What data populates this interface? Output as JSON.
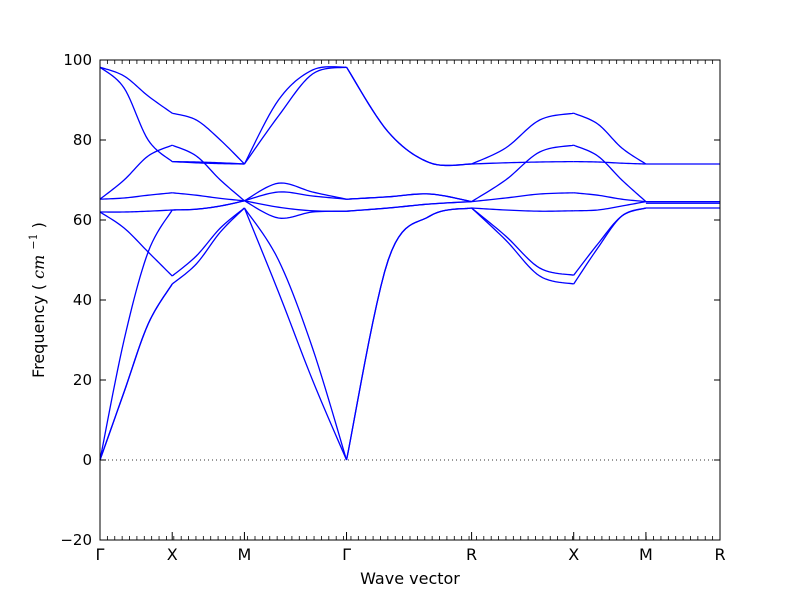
{
  "chart_data": {
    "type": "line",
    "title": "",
    "xlabel": "Wave vector",
    "ylabel": "Frequency",
    "ylabel_unit": "cm",
    "ylabel_unit_exponent": "−1",
    "ylim": [
      -20,
      100
    ],
    "yticks": [
      -20,
      0,
      20,
      40,
      60,
      80,
      100
    ],
    "ytick_labels": [
      "−20",
      "0",
      "20",
      "40",
      "60",
      "80",
      "100"
    ],
    "grid": false,
    "legend": "none",
    "series_color": "#0000ff",
    "zero_line": {
      "y": 0,
      "style": "dotted"
    },
    "xlim": [
      0,
      4.293
    ],
    "high_symmetry_points": [
      {
        "label": "Γ",
        "x": 0
      },
      {
        "label": "X",
        "x": 0.5
      },
      {
        "label": "M",
        "x": 1.0
      },
      {
        "label": "Γ",
        "x": 1.707
      },
      {
        "label": "R",
        "x": 2.573
      },
      {
        "label": "X",
        "x": 3.28
      },
      {
        "label": "M",
        "x": 3.78
      },
      {
        "label": "R",
        "x": 4.293
      }
    ],
    "segments": [
      {
        "from": "Γ",
        "to": "X",
        "x_start": 0,
        "x_end": 0.5,
        "bands": [
          [
            0,
            17,
            34,
            44
          ],
          [
            0,
            17,
            34,
            44
          ],
          [
            0,
            30,
            52,
            62.5
          ],
          [
            62,
            62,
            62.2,
            62.5
          ],
          [
            62,
            58,
            52,
            46
          ],
          [
            65.2,
            65.5,
            66.2,
            66.8
          ],
          [
            65.2,
            70,
            76,
            78.7
          ],
          [
            98.2,
            93,
            80,
            74.6
          ],
          [
            98.2,
            96,
            91,
            86.7
          ]
        ]
      },
      {
        "from": "X",
        "to": "M",
        "x_start": 0.5,
        "x_end": 1.0,
        "bands": [
          [
            44,
            49,
            57,
            63
          ],
          [
            46,
            51,
            58,
            63
          ],
          [
            62.5,
            62.7,
            63.5,
            64.8
          ],
          [
            62.5,
            62.7,
            63.5,
            64.8
          ],
          [
            66.8,
            66.2,
            65.4,
            64.8
          ],
          [
            74.6,
            74.3,
            74.1,
            74
          ],
          [
            78.7,
            76,
            70,
            64.8
          ],
          [
            86.7,
            85,
            80,
            74
          ],
          [
            74.6,
            74.5,
            74.3,
            74
          ]
        ]
      },
      {
        "from": "M",
        "to": "Γ",
        "x_start": 1.0,
        "x_end": 1.707,
        "bands": [
          [
            63,
            50,
            28,
            0
          ],
          [
            63,
            42,
            20,
            0
          ],
          [
            64.8,
            60.5,
            62,
            62.2
          ],
          [
            64.8,
            63.2,
            62.3,
            62.2
          ],
          [
            64.8,
            67,
            66,
            65.2
          ],
          [
            64.8,
            69.2,
            67,
            65.2
          ],
          [
            74,
            90,
            97.5,
            98.2
          ],
          [
            74,
            86,
            96.5,
            98.2
          ]
        ]
      },
      {
        "from": "Γ",
        "to": "R",
        "x_start": 1.707,
        "x_end": 2.573,
        "bands": [
          [
            0,
            50,
            61,
            63
          ],
          [
            0,
            50,
            61,
            63
          ],
          [
            62.2,
            63,
            64,
            64.6
          ],
          [
            62.2,
            63,
            64,
            64.6
          ],
          [
            65.2,
            65.8,
            66.5,
            64.6
          ],
          [
            65.2,
            65.8,
            66.5,
            64.6
          ],
          [
            98.2,
            82,
            74.3,
            74
          ],
          [
            98.2,
            82,
            74.3,
            74
          ]
        ]
      },
      {
        "from": "R",
        "to": "X",
        "x_start": 2.573,
        "x_end": 3.28,
        "bands": [
          [
            63,
            55,
            46,
            44
          ],
          [
            63,
            56,
            48,
            46.2
          ],
          [
            63,
            62.5,
            62.2,
            62.3
          ],
          [
            64.6,
            65.5,
            66.5,
            66.8
          ],
          [
            64.6,
            70,
            77,
            78.7
          ],
          [
            74,
            74.3,
            74.5,
            74.6
          ],
          [
            74,
            78,
            85,
            86.7
          ]
        ]
      },
      {
        "from": "X",
        "to": "M",
        "x_start": 3.28,
        "x_end": 3.78,
        "bands": [
          [
            44,
            53,
            61,
            63
          ],
          [
            46.2,
            54,
            61,
            63
          ],
          [
            62.3,
            62.5,
            63.5,
            64.6
          ],
          [
            66.8,
            66.2,
            65.2,
            64.6
          ],
          [
            78.7,
            76,
            70,
            64.6
          ],
          [
            74.6,
            74.5,
            74.2,
            74
          ],
          [
            86.7,
            84,
            78,
            74
          ]
        ]
      },
      {
        "from": "M",
        "to": "R",
        "x_start": 3.78,
        "x_end": 4.293,
        "bands": [
          [
            63,
            63,
            63,
            63
          ],
          [
            64.6,
            64.6,
            64.6,
            64.6
          ],
          [
            64.2,
            64.2,
            64.2,
            64.2
          ],
          [
            74,
            74,
            74,
            74
          ]
        ]
      }
    ]
  }
}
